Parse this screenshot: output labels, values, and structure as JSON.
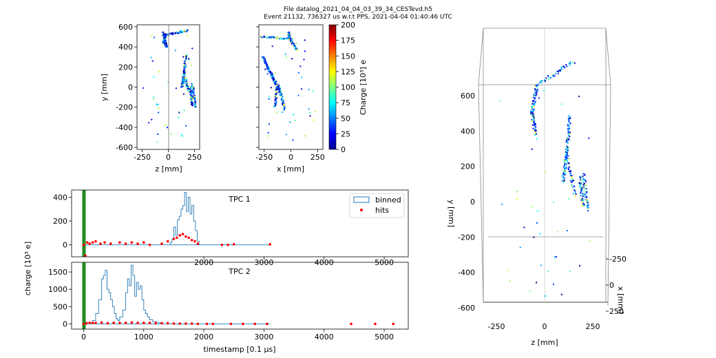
{
  "header": {
    "line1": "File datalog_2021_04_04_03_39_34_CESTevd.h5",
    "line2": "Event 21132, 736327 us w.r.t PPS, 2021-04-04 01:40:46 UTC"
  },
  "colors": {
    "binned": "#1f77b4",
    "hits": "#ff0000",
    "trigger": "#228b22",
    "axis": "#000000"
  },
  "colorbar": {
    "label": "Charge [10³] e",
    "ticks": [
      "0",
      "25",
      "50",
      "75",
      "100",
      "125",
      "150",
      "175",
      "200"
    ],
    "range": [
      0,
      200
    ]
  },
  "chart_data": [
    {
      "type": "scatter",
      "id": "zy",
      "xlabel": "z [mm]",
      "ylabel": "y [mm]",
      "xlim": [
        -300,
        300
      ],
      "ylim": [
        -620,
        620
      ],
      "xticks": [
        "-250",
        "0",
        "250"
      ],
      "yticks": [
        "-600",
        "-400",
        "-200",
        "0",
        "200",
        "400",
        "600"
      ],
      "tracks": [
        {
          "from": [
            -20,
            520
          ],
          "to": [
            180,
            560
          ]
        },
        {
          "from": [
            -50,
            550
          ],
          "to": [
            -20,
            400
          ]
        },
        {
          "from": [
            -50,
            440
          ],
          "to": [
            -20,
            520
          ]
        },
        {
          "from": [
            170,
            320
          ],
          "to": [
            150,
            120
          ]
        },
        {
          "from": [
            150,
            120
          ],
          "to": [
            130,
            0
          ]
        },
        {
          "from": [
            150,
            120
          ],
          "to": [
            200,
            -40
          ]
        },
        {
          "from": [
            230,
            30
          ],
          "to": [
            260,
            -200
          ]
        },
        {
          "from": [
            210,
            10
          ],
          "to": [
            230,
            -180
          ]
        }
      ]
    },
    {
      "type": "scatter",
      "id": "xy",
      "xlabel": "x [mm]",
      "ylabel": "",
      "xlim": [
        -300,
        300
      ],
      "ylim": [
        -620,
        620
      ],
      "xticks": [
        "-250",
        "0",
        "250"
      ],
      "tracks": [
        {
          "from": [
            -280,
            500
          ],
          "to": [
            -10,
            480
          ]
        },
        {
          "from": [
            -10,
            480
          ],
          "to": [
            60,
            370
          ]
        },
        {
          "from": [
            -20,
            540
          ],
          "to": [
            -10,
            480
          ]
        },
        {
          "from": [
            -260,
            300
          ],
          "to": [
            -200,
            160
          ]
        },
        {
          "from": [
            -200,
            160
          ],
          "to": [
            -130,
            20
          ]
        },
        {
          "from": [
            -200,
            160
          ],
          "to": [
            -100,
            -60
          ]
        },
        {
          "from": [
            -130,
            20
          ],
          "to": [
            -150,
            -200
          ]
        },
        {
          "from": [
            -110,
            10
          ],
          "to": [
            -60,
            -220
          ]
        }
      ]
    },
    {
      "type": "area",
      "id": "tpc1",
      "title": "TPC 1",
      "ylabel": "charge [10³ e]",
      "xlim": [
        -200,
        5400
      ],
      "ylim": [
        -100,
        460
      ],
      "yticks": [
        "0",
        "200",
        "400"
      ],
      "xticks_visible": [
        "2000",
        "3000",
        "4000",
        "5000"
      ],
      "legend": {
        "placement": "top-right",
        "entries": [
          "binned",
          "hits"
        ]
      },
      "binned": {
        "x": [
          1440,
          1470,
          1500,
          1530,
          1560,
          1590,
          1620,
          1650,
          1680,
          1710,
          1740,
          1770,
          1800,
          1830,
          1860,
          1890
        ],
        "y": [
          20,
          50,
          150,
          80,
          210,
          240,
          300,
          330,
          440,
          280,
          400,
          260,
          330,
          200,
          120,
          30
        ]
      },
      "hits": {
        "x": [
          0,
          30,
          60,
          100,
          150,
          200,
          280,
          350,
          450,
          600,
          700,
          800,
          900,
          1000,
          1100,
          1300,
          1400,
          1500,
          1550,
          1600,
          1650,
          1700,
          1750,
          1800,
          1850,
          1900,
          2300,
          2400,
          2500,
          3100
        ],
        "y": [
          0,
          -90,
          20,
          10,
          20,
          30,
          10,
          20,
          10,
          20,
          10,
          20,
          10,
          20,
          0,
          10,
          30,
          50,
          60,
          80,
          90,
          70,
          60,
          40,
          30,
          10,
          0,
          0,
          5,
          5
        ]
      }
    },
    {
      "type": "area",
      "id": "tpc2",
      "title": "TPC 2",
      "xlabel": "timestamp [0.1 μs]",
      "xlim": [
        -200,
        5400
      ],
      "ylim": [
        -150,
        1780
      ],
      "yticks": [
        "0",
        "500",
        "1000",
        "1500"
      ],
      "xticks": [
        "0",
        "1000",
        "2000",
        "3000",
        "4000",
        "5000"
      ],
      "binned": {
        "x": [
          100,
          150,
          200,
          250,
          300,
          330,
          360,
          390,
          420,
          450,
          480,
          510,
          540,
          570,
          600,
          650,
          700,
          730,
          760,
          790,
          820,
          850,
          880,
          910,
          940,
          970,
          1000,
          1030,
          1060,
          1100,
          1150,
          1200,
          1250,
          1300
        ],
        "y": [
          40,
          100,
          300,
          700,
          1300,
          1400,
          1550,
          1000,
          900,
          700,
          500,
          300,
          150,
          100,
          200,
          400,
          900,
          1300,
          1100,
          1700,
          1400,
          800,
          1200,
          1000,
          1100,
          700,
          400,
          300,
          200,
          120,
          60,
          50,
          30,
          0
        ]
      },
      "hits": {
        "x": [
          0,
          50,
          100,
          150,
          200,
          300,
          400,
          500,
          600,
          700,
          800,
          900,
          1000,
          1100,
          1200,
          1300,
          1400,
          1500,
          1600,
          1700,
          1800,
          1900,
          2050,
          2150,
          2450,
          2650,
          2850,
          3050,
          4450,
          4850,
          5150
        ],
        "y": [
          0,
          20,
          30,
          30,
          30,
          40,
          20,
          30,
          30,
          30,
          40,
          30,
          30,
          30,
          20,
          20,
          20,
          10,
          10,
          10,
          10,
          0,
          0,
          0,
          0,
          0,
          0,
          0,
          0,
          0,
          0
        ]
      }
    },
    {
      "type": "scatter",
      "id": "3d",
      "xlabel": "z [mm]",
      "ylabel": "y [mm]",
      "zlabel": "x [mm]",
      "xticks": [
        "-250",
        "0",
        "250"
      ],
      "yticks": [
        "-600",
        "-400",
        "-200",
        "0",
        "200",
        "400",
        "600"
      ],
      "zticks": [
        "-250",
        "0",
        "250"
      ],
      "xlim": [
        -350,
        350
      ],
      "ylim": [
        -650,
        680
      ],
      "tracks": [
        {
          "from": [
            -50,
            620
          ],
          "to": [
            -80,
            480
          ]
        },
        {
          "from": [
            -80,
            480
          ],
          "to": [
            -60,
            350
          ]
        },
        {
          "from": [
            -60,
            620
          ],
          "to": [
            170,
            760
          ]
        },
        {
          "from": [
            150,
            450
          ],
          "to": [
            130,
            250
          ]
        },
        {
          "from": [
            130,
            250
          ],
          "to": [
            110,
            80
          ]
        },
        {
          "from": [
            130,
            250
          ],
          "to": [
            180,
            0
          ]
        },
        {
          "from": [
            230,
            120
          ],
          "to": [
            260,
            -80
          ]
        },
        {
          "from": [
            210,
            100
          ],
          "to": [
            230,
            -60
          ]
        }
      ]
    }
  ]
}
